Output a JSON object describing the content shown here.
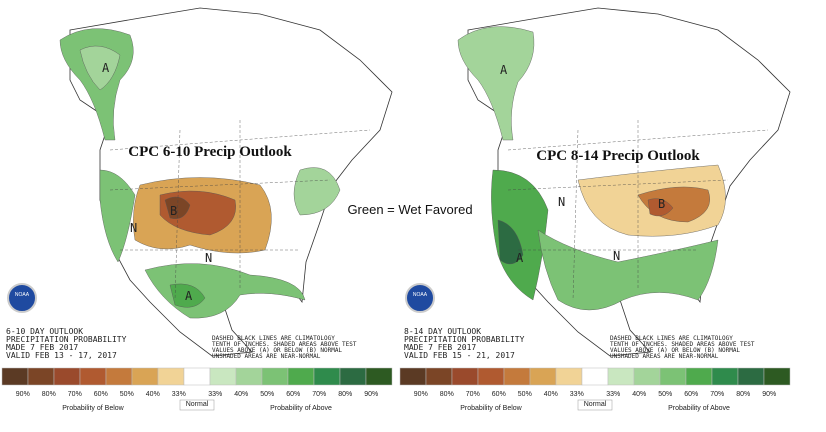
{
  "maps": [
    {
      "title": "CPC 6-10 Precip Outlook",
      "outlook": "6-10 DAY OUTLOOK",
      "product": "PRECIPITATION PROBABILITY",
      "made": "MADE 7 FEB 2017",
      "valid": "VALID FEB 13 - 17, 2017",
      "note": [
        "DASHED BLACK LINES ARE CLIMATOLOGY",
        "TENTH OF INCHES. SHADED AREAS ABOVE TEST",
        "VALUES ABOVE (A) OR BELOW (B) NORMAL",
        "UNSHADED AREAS ARE NEAR-NORMAL"
      ],
      "logo": "NOAA",
      "region_labels": [
        "A",
        "B",
        "N",
        "A",
        "N"
      ]
    },
    {
      "title": "CPC 8-14 Precip Outlook",
      "outlook": "8-14 DAY OUTLOOK",
      "product": "PRECIPITATION PROBABILITY",
      "made": "MADE 7 FEB 2017",
      "valid": "VALID FEB 15 - 21, 2017",
      "note": [
        "DASHED BLACK LINES ARE CLIMATOLOGY",
        "TENTH OF INCHES. SHADED AREAS ABOVE TEST",
        "VALUES ABOVE (A) OR BELOW (B) NORMAL",
        "UNSHADED AREAS ARE NEAR-NORMAL"
      ],
      "logo": "NOAA",
      "region_labels": [
        "A",
        "N",
        "B",
        "A",
        "N"
      ]
    }
  ],
  "center_label": "Green = Wet Favored",
  "legend": {
    "below_labels": [
      "90%",
      "80%",
      "70%",
      "60%",
      "50%",
      "40%",
      "33%"
    ],
    "above_labels": [
      "33%",
      "40%",
      "50%",
      "60%",
      "70%",
      "80%",
      "90%"
    ],
    "below_colors": [
      "#5b3a24",
      "#7b4526",
      "#9a4a2c",
      "#b05a30",
      "#c47a3c",
      "#d9a455",
      "#f1d396"
    ],
    "normal_color": "#ffffff",
    "above_colors": [
      "#c9e7c0",
      "#a3d49a",
      "#7cc275",
      "#4faa4d",
      "#2f8b4c",
      "#2c6b42",
      "#2d5a22"
    ],
    "below_title": "Probability of Below",
    "normal_title": "Normal",
    "above_title": "Probability of Above"
  }
}
